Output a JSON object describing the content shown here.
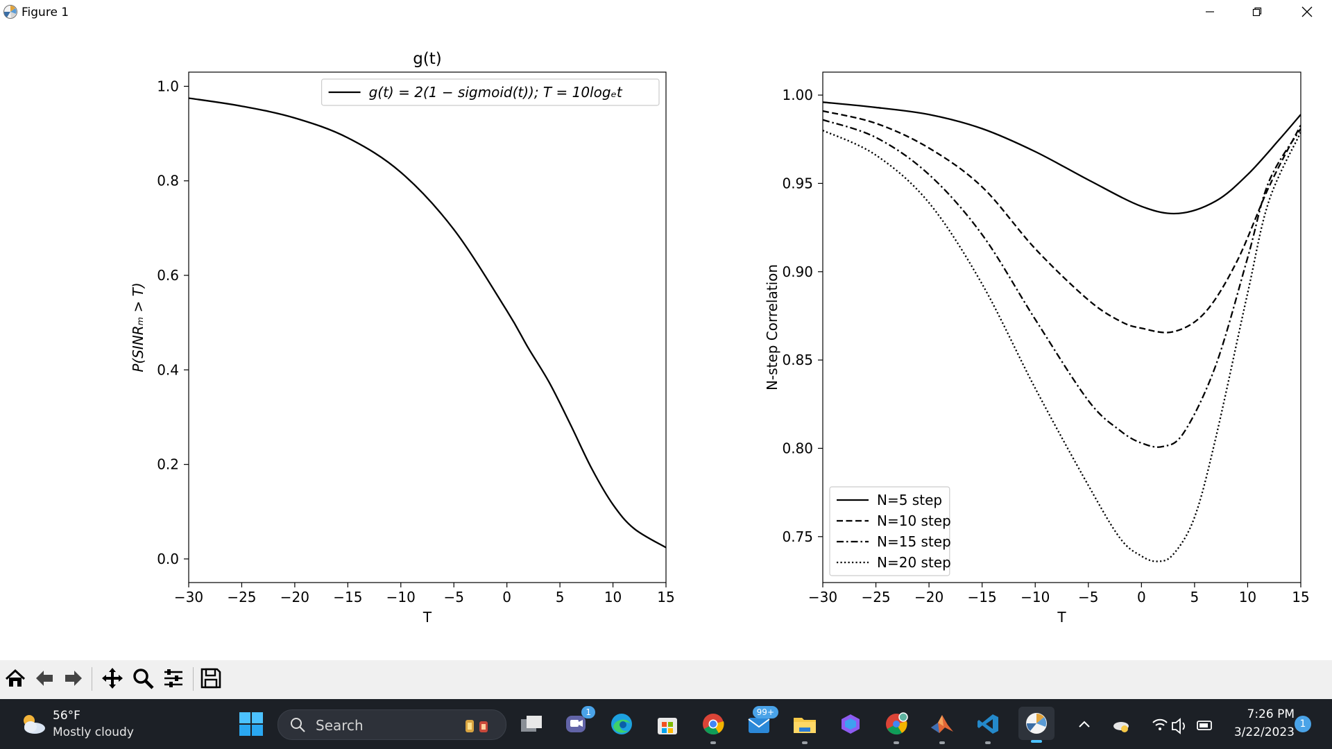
{
  "window": {
    "title": "Figure 1"
  },
  "chart_data": [
    {
      "type": "line",
      "title": "g(t)",
      "xlabel": "T",
      "ylabel": "P(SINRₘ > T)",
      "xlim": [
        -30,
        15
      ],
      "ylim": [
        -0.05,
        1.03
      ],
      "xticks": [
        -30,
        -25,
        -20,
        -15,
        -10,
        -5,
        0,
        5,
        10,
        15
      ],
      "yticks": [
        0.0,
        0.2,
        0.4,
        0.6,
        0.8,
        1.0
      ],
      "xtick_labels": [
        "−30",
        "−25",
        "−20",
        "−15",
        "−10",
        "−5",
        "0",
        "5",
        "10",
        "15"
      ],
      "ytick_labels": [
        "0.0",
        "0.2",
        "0.4",
        "0.6",
        "0.8",
        "1.0"
      ],
      "grid": false,
      "legend_position": "top-right",
      "series": [
        {
          "name": "g(t) = 2(1 − sigmoid(t)); T = 10logₑt",
          "style": "solid",
          "color": "#000000",
          "x": [
            -30,
            -25,
            -20,
            -15,
            -10,
            -5,
            0,
            2,
            4,
            6,
            8,
            10,
            12,
            15
          ],
          "y": [
            0.975,
            0.958,
            0.933,
            0.891,
            0.818,
            0.697,
            0.525,
            0.447,
            0.373,
            0.284,
            0.191,
            0.115,
            0.064,
            0.024
          ]
        }
      ]
    },
    {
      "type": "line",
      "title": "",
      "xlabel": "T",
      "ylabel": "N-step Correlation",
      "xlim": [
        -30,
        15
      ],
      "ylim": [
        0.724,
        1.013
      ],
      "xticks": [
        -30,
        -25,
        -20,
        -15,
        -10,
        -5,
        0,
        5,
        10,
        15
      ],
      "yticks": [
        0.75,
        0.8,
        0.85,
        0.9,
        0.95,
        1.0
      ],
      "xtick_labels": [
        "−30",
        "−25",
        "−20",
        "−15",
        "−10",
        "−5",
        "0",
        "5",
        "10",
        "15"
      ],
      "ytick_labels": [
        "0.75",
        "0.80",
        "0.85",
        "0.90",
        "0.95",
        "1.00"
      ],
      "grid": false,
      "legend_position": "bottom-left",
      "series": [
        {
          "name": "N=5 step",
          "style": "solid",
          "color": "#000000",
          "x": [
            -30,
            -25,
            -20,
            -15,
            -10,
            -5,
            0,
            3.5,
            7,
            10,
            13,
            15
          ],
          "y": [
            0.996,
            0.993,
            0.989,
            0.981,
            0.968,
            0.952,
            0.937,
            0.933,
            0.94,
            0.955,
            0.975,
            0.989
          ]
        },
        {
          "name": "N=10 step",
          "style": "dashed",
          "color": "#000000",
          "x": [
            -30,
            -25,
            -20,
            -15,
            -10,
            -5,
            -2,
            0,
            3,
            6,
            9,
            12,
            15
          ],
          "y": [
            0.991,
            0.984,
            0.97,
            0.948,
            0.913,
            0.884,
            0.872,
            0.868,
            0.866,
            0.877,
            0.906,
            0.948,
            0.983
          ]
        },
        {
          "name": "N=15 step",
          "style": "dashdot",
          "color": "#000000",
          "x": [
            -30,
            -25,
            -20,
            -15,
            -10,
            -5,
            -2,
            0,
            2,
            4,
            7,
            10,
            12,
            15
          ],
          "y": [
            0.986,
            0.976,
            0.955,
            0.921,
            0.873,
            0.827,
            0.81,
            0.803,
            0.801,
            0.809,
            0.847,
            0.908,
            0.951,
            0.981
          ]
        },
        {
          "name": "N=20 step",
          "style": "dotted",
          "color": "#000000",
          "x": [
            -30,
            -25,
            -20,
            -15,
            -10,
            -5,
            -2,
            0,
            1.5,
            3,
            5,
            7,
            10,
            12,
            15
          ],
          "y": [
            0.98,
            0.966,
            0.939,
            0.893,
            0.834,
            0.779,
            0.749,
            0.739,
            0.736,
            0.74,
            0.761,
            0.806,
            0.888,
            0.94,
            0.979
          ]
        }
      ]
    }
  ],
  "toolbar": {
    "buttons": [
      {
        "name": "home-icon",
        "tooltip": "Reset original view"
      },
      {
        "name": "arrow-left-icon",
        "tooltip": "Back"
      },
      {
        "name": "arrow-right-icon",
        "tooltip": "Forward"
      },
      {
        "name": "move-icon",
        "tooltip": "Pan"
      },
      {
        "name": "magnifier-icon",
        "tooltip": "Zoom"
      },
      {
        "name": "sliders-icon",
        "tooltip": "Configure subplots"
      },
      {
        "name": "floppy-disk-icon",
        "tooltip": "Save"
      }
    ]
  },
  "taskbar": {
    "weather": {
      "temp": "56°F",
      "desc": "Mostly cloudy"
    },
    "search": {
      "label": "Search"
    },
    "apps": [
      {
        "name": "task-view-icon"
      },
      {
        "name": "teams-icon",
        "badge": "1"
      },
      {
        "name": "edge-icon"
      },
      {
        "name": "store-icon"
      },
      {
        "name": "chrome-icon"
      },
      {
        "name": "mail-icon",
        "badge": "99+"
      },
      {
        "name": "file-explorer-icon"
      },
      {
        "name": "copilot-icon"
      },
      {
        "name": "chrome-profile-icon"
      },
      {
        "name": "matlab-icon"
      },
      {
        "name": "vscode-icon"
      },
      {
        "name": "matplotlib-figure-icon"
      }
    ],
    "clock": {
      "time": "7:26 PM",
      "date": "3/22/2023"
    },
    "notifications": "1"
  },
  "colors": {
    "taskbar_bg": "#1c2026",
    "toolbar_bg": "#f0f0f0",
    "accent": "#4aa3e8"
  }
}
